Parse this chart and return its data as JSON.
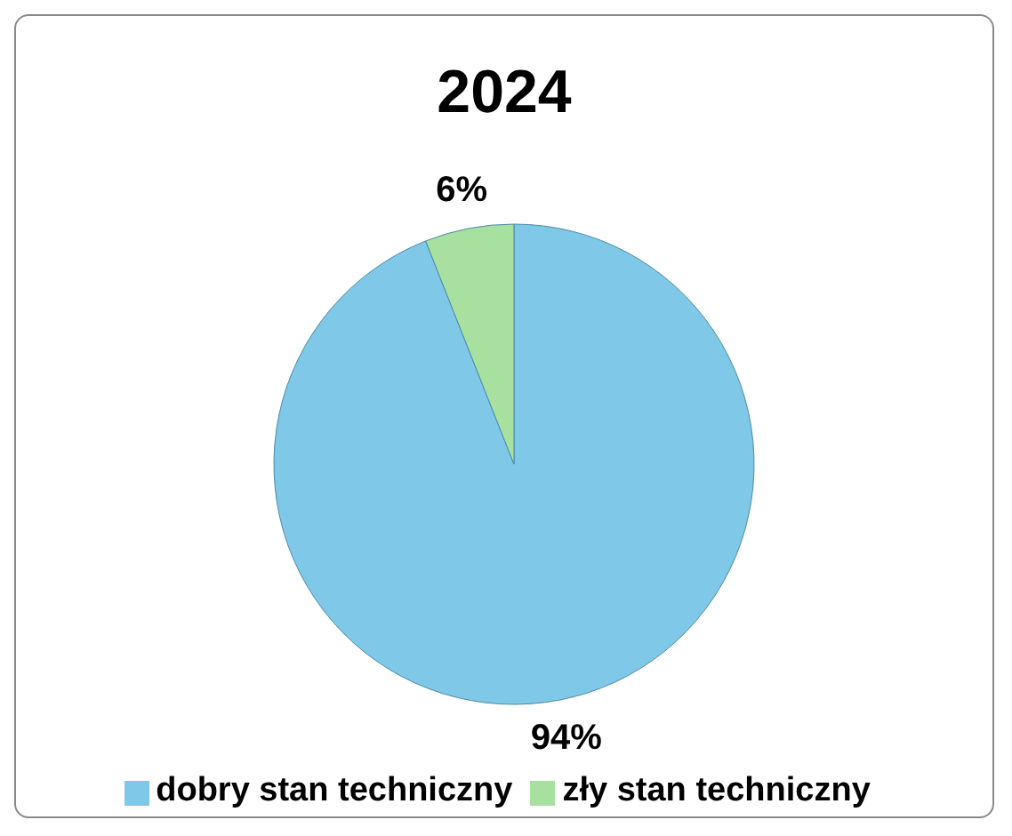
{
  "chart_data": {
    "type": "pie",
    "title": "2024",
    "categories": [
      "dobry stan techniczny",
      "zły stan techniczny"
    ],
    "values": [
      94,
      6
    ],
    "colors": [
      "#7fc8e8",
      "#a8e0a0"
    ],
    "value_labels": [
      "94%",
      "6%"
    ],
    "legend": "bottom"
  }
}
